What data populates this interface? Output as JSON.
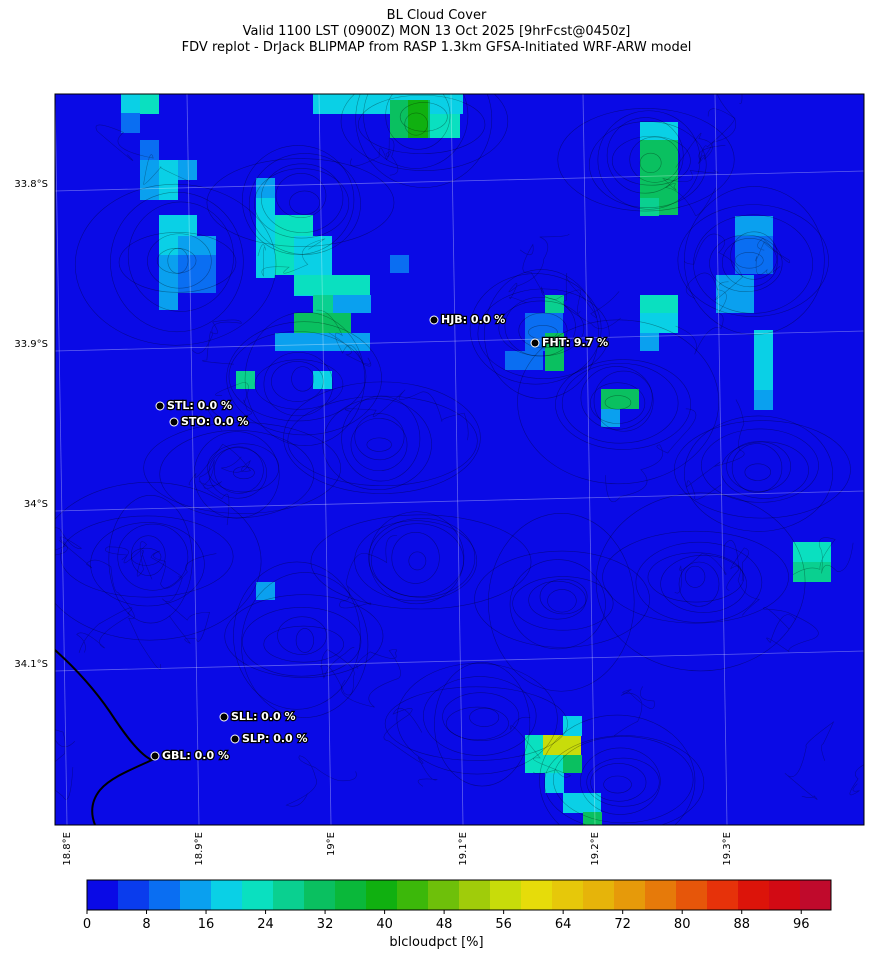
{
  "title": {
    "line1": "BL Cloud Cover",
    "line2": "Valid 1100 LST (0900Z) MON 13 Oct 2025 [9hrFcst@0450z]",
    "line3": "FDV replot - DrJack BLIPMAP from RASP 1.3km GFSA-Initiated WRF-ARW model"
  },
  "map": {
    "background_color": "#0a0ae6",
    "lat_labels": [
      "33.8°S",
      "33.9°S",
      "34°S",
      "34.1°S"
    ],
    "lon_labels": [
      "18.8°E",
      "18.9°E",
      "19°E",
      "19.1°E",
      "19.2°E",
      "19.3°E"
    ],
    "stations": [
      {
        "label": "HJB: 0.0 %"
      },
      {
        "label": "FHT: 9.7 %"
      },
      {
        "label": "STL: 0.0 %"
      },
      {
        "label": "STO: 0.0 %"
      },
      {
        "label": "SLL: 0.0 %"
      },
      {
        "label": "SLP: 0.0 %"
      },
      {
        "label": "GBL: 0.0 %"
      }
    ]
  },
  "colorbar": {
    "label": "blcloudpct [%]",
    "range": [
      0,
      100
    ],
    "ticks": [
      "0",
      "8",
      "16",
      "24",
      "32",
      "40",
      "48",
      "56",
      "64",
      "72",
      "80",
      "88",
      "96"
    ],
    "colors": [
      "#0a0ae6",
      "#0a3ced",
      "#0a6ef2",
      "#0aa0ef",
      "#0ad0e6",
      "#0ae0c0",
      "#0ad090",
      "#0ac060",
      "#0ab83a",
      "#10b010",
      "#3cb80a",
      "#6ec00a",
      "#a0cc0a",
      "#c8dc0a",
      "#e6dc0a",
      "#e6c80a",
      "#e6b40a",
      "#e69a0a",
      "#e67a0a",
      "#e6560a",
      "#e6320a",
      "#dc140a",
      "#d20a14",
      "#c00a2c"
    ]
  }
}
